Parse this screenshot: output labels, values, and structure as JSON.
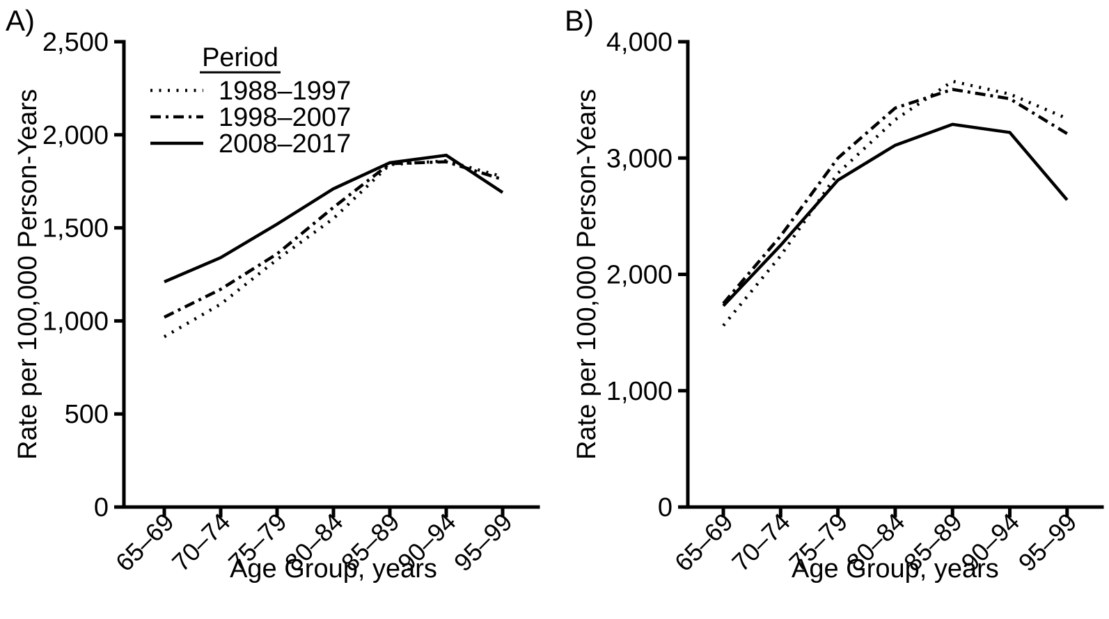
{
  "page": {
    "background": "#ffffff",
    "ink_color": "#000000"
  },
  "chart_data": [
    {
      "type": "line",
      "panel_label": "A)",
      "xlabel": "Age Group, years",
      "ylabel": "Rate per 100,000 Person-Years",
      "categories": [
        "65–69",
        "70–74",
        "75–79",
        "80–84",
        "85–89",
        "90–94",
        "95–99"
      ],
      "ylim": [
        0,
        2500
      ],
      "y_tick_labels": [
        "0",
        "500",
        "1,000",
        "1,500",
        "2,000",
        "2,500"
      ],
      "grid": false,
      "legend": {
        "title": "Period",
        "position": "top-left-inside"
      },
      "series": [
        {
          "name": "1988–1997",
          "style": "dotted",
          "values": [
            915,
            1090,
            1330,
            1550,
            1840,
            1860,
            1775
          ]
        },
        {
          "name": "1998–2007",
          "style": "dashdot",
          "values": [
            1020,
            1170,
            1360,
            1610,
            1845,
            1855,
            1760
          ]
        },
        {
          "name": "2008–2017",
          "style": "solid",
          "values": [
            1210,
            1340,
            1520,
            1710,
            1850,
            1890,
            1690
          ]
        }
      ]
    },
    {
      "type": "line",
      "panel_label": "B)",
      "xlabel": "Age Group, years",
      "ylabel": "Rate per 100,000 Person-Years",
      "categories": [
        "65–69",
        "70–74",
        "75–79",
        "80–84",
        "85–89",
        "90–94",
        "95–99"
      ],
      "ylim": [
        0,
        4000
      ],
      "y_tick_labels": [
        "0",
        "1,000",
        "2,000",
        "3,000",
        "4,000"
      ],
      "grid": false,
      "legend": null,
      "series": [
        {
          "name": "1988–1997",
          "style": "dotted",
          "values": [
            1560,
            2160,
            2870,
            3330,
            3660,
            3550,
            3340
          ]
        },
        {
          "name": "1998–2007",
          "style": "dashdot",
          "values": [
            1750,
            2330,
            3000,
            3430,
            3590,
            3510,
            3210
          ]
        },
        {
          "name": "2008–2017",
          "style": "solid",
          "values": [
            1730,
            2250,
            2810,
            3110,
            3290,
            3220,
            2640
          ]
        }
      ]
    }
  ]
}
